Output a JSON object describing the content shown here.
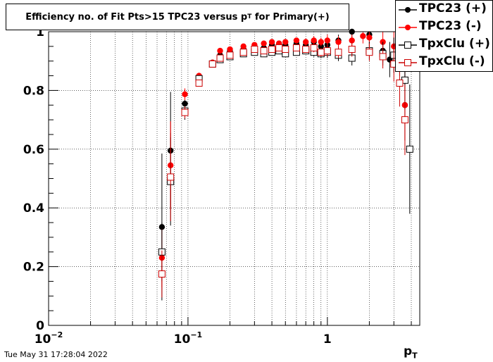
{
  "title": {
    "text_main": "Efficiency no. of Fit Pts>15 TPC23 versus p",
    "text_sub": "T",
    "text_tail": " for Primary(+)"
  },
  "xaxis": {
    "label_main": "p",
    "label_sub": "T"
  },
  "footer": {
    "timestamp": "Tue May 31 17:28:04 2022"
  },
  "legend": [
    {
      "label": "TPC23 (+)",
      "marker": "filled-circle",
      "color": "#000000"
    },
    {
      "label": "TPC23 (-)",
      "marker": "filled-circle",
      "color": "#ff0000"
    },
    {
      "label": "TpxClu (+)",
      "marker": "open-square",
      "color": "#000000"
    },
    {
      "label": "TpxClu (-)",
      "marker": "open-square",
      "color": "#cc0000"
    }
  ],
  "chart_data": {
    "type": "scatter",
    "title": "Efficiency no. of Fit Pts>15 TPC23 versus pT for Primary(+)",
    "xlabel": "pT",
    "ylabel": "",
    "xscale": "log",
    "xlim": [
      0.01,
      4.6
    ],
    "ylim": [
      0,
      1.0
    ],
    "grid": true,
    "legend_position": "top-right",
    "xticks": [
      {
        "value": 0.01,
        "base": "10",
        "exp": "−2"
      },
      {
        "value": 0.1,
        "base": "10",
        "exp": "−1"
      },
      {
        "value": 1,
        "base": "1",
        "exp": ""
      }
    ],
    "yticks": [
      {
        "value": 0,
        "label": "0"
      },
      {
        "value": 0.2,
        "label": "0.2"
      },
      {
        "value": 0.4,
        "label": "0.4"
      },
      {
        "value": 0.6,
        "label": "0.6"
      },
      {
        "value": 0.8,
        "label": "0.8"
      },
      {
        "value": 1,
        "label": "1"
      }
    ],
    "series": [
      {
        "name": "TPC23 (+)",
        "marker": "filled-circle",
        "color": "#000000",
        "points": [
          {
            "x": 0.065,
            "y": 0.335,
            "ey": 0.25
          },
          {
            "x": 0.075,
            "y": 0.595,
            "ey": 0.2
          },
          {
            "x": 0.095,
            "y": 0.755,
            "ey": 0.03,
            "ex": 0.005
          },
          {
            "x": 0.12,
            "y": 0.848,
            "ey": 0.01,
            "ex": 0.006
          },
          {
            "x": 0.15,
            "y": 0.895,
            "ey": 0.008
          },
          {
            "x": 0.17,
            "y": 0.92,
            "ey": 0.008
          },
          {
            "x": 0.2,
            "y": 0.935,
            "ey": 0.008
          },
          {
            "x": 0.25,
            "y": 0.94,
            "ey": 0.008
          },
          {
            "x": 0.3,
            "y": 0.95,
            "ey": 0.008
          },
          {
            "x": 0.35,
            "y": 0.945,
            "ey": 0.008
          },
          {
            "x": 0.4,
            "y": 0.955,
            "ey": 0.008
          },
          {
            "x": 0.45,
            "y": 0.96,
            "ey": 0.008
          },
          {
            "x": 0.5,
            "y": 0.955,
            "ey": 0.01
          },
          {
            "x": 0.6,
            "y": 0.96,
            "ey": 0.01
          },
          {
            "x": 0.7,
            "y": 0.955,
            "ey": 0.012
          },
          {
            "x": 0.8,
            "y": 0.965,
            "ey": 0.015
          },
          {
            "x": 0.9,
            "y": 0.95,
            "ey": 0.015
          },
          {
            "x": 1.0,
            "y": 0.955,
            "ey": 0.02
          },
          {
            "x": 1.2,
            "y": 0.97,
            "ey": 0.02
          },
          {
            "x": 1.5,
            "y": 1.0,
            "ey": 0.02
          },
          {
            "x": 2.0,
            "y": 0.99,
            "ey": 0.03
          },
          {
            "x": 2.5,
            "y": 0.935,
            "ey": 0.04
          },
          {
            "x": 2.8,
            "y": 0.905,
            "ey": 0.06
          },
          {
            "x": 3.3,
            "y": 0.93,
            "ey": 0.08
          },
          {
            "x": 3.6,
            "y": 0.75,
            "ey": 0.12
          }
        ]
      },
      {
        "name": "TPC23 (-)",
        "marker": "filled-circle",
        "color": "#ff0000",
        "points": [
          {
            "x": 0.065,
            "y": 0.23,
            "ey": 0.1
          },
          {
            "x": 0.075,
            "y": 0.545,
            "ey": 0.15
          },
          {
            "x": 0.095,
            "y": 0.787,
            "ey": 0.02
          },
          {
            "x": 0.12,
            "y": 0.85,
            "ey": 0.01
          },
          {
            "x": 0.15,
            "y": 0.895,
            "ey": 0.008
          },
          {
            "x": 0.17,
            "y": 0.935,
            "ey": 0.008
          },
          {
            "x": 0.2,
            "y": 0.94,
            "ey": 0.008
          },
          {
            "x": 0.25,
            "y": 0.95,
            "ey": 0.008
          },
          {
            "x": 0.3,
            "y": 0.955,
            "ey": 0.008
          },
          {
            "x": 0.35,
            "y": 0.96,
            "ey": 0.008
          },
          {
            "x": 0.4,
            "y": 0.965,
            "ey": 0.008
          },
          {
            "x": 0.45,
            "y": 0.96,
            "ey": 0.01
          },
          {
            "x": 0.5,
            "y": 0.965,
            "ey": 0.01
          },
          {
            "x": 0.6,
            "y": 0.97,
            "ey": 0.01
          },
          {
            "x": 0.7,
            "y": 0.965,
            "ey": 0.012
          },
          {
            "x": 0.8,
            "y": 0.97,
            "ey": 0.015
          },
          {
            "x": 0.9,
            "y": 0.965,
            "ey": 0.015
          },
          {
            "x": 1.0,
            "y": 0.97,
            "ey": 0.02
          },
          {
            "x": 1.2,
            "y": 0.965,
            "ey": 0.02
          },
          {
            "x": 1.5,
            "y": 0.97,
            "ey": 0.02
          },
          {
            "x": 1.8,
            "y": 0.985,
            "ey": 0.025
          },
          {
            "x": 2.0,
            "y": 0.98,
            "ey": 0.03
          },
          {
            "x": 2.5,
            "y": 0.965,
            "ey": 0.04
          },
          {
            "x": 3.0,
            "y": 0.95,
            "ey": 0.05
          },
          {
            "x": 3.6,
            "y": 0.75,
            "ey": 0.12
          }
        ]
      },
      {
        "name": "TpxClu (+)",
        "marker": "open-square",
        "color": "#000000",
        "points": [
          {
            "x": 0.065,
            "y": 0.25,
            "ey": 0.1
          },
          {
            "x": 0.075,
            "y": 0.49,
            "ey": 0.15
          },
          {
            "x": 0.095,
            "y": 0.73,
            "ey": 0.03,
            "ex": 0.005
          },
          {
            "x": 0.12,
            "y": 0.84,
            "ey": 0.01,
            "ex": 0.006
          },
          {
            "x": 0.15,
            "y": 0.89,
            "ey": 0.008
          },
          {
            "x": 0.17,
            "y": 0.905,
            "ey": 0.008
          },
          {
            "x": 0.2,
            "y": 0.915,
            "ey": 0.008
          },
          {
            "x": 0.25,
            "y": 0.925,
            "ey": 0.008
          },
          {
            "x": 0.3,
            "y": 0.93,
            "ey": 0.008
          },
          {
            "x": 0.35,
            "y": 0.925,
            "ey": 0.008
          },
          {
            "x": 0.4,
            "y": 0.93,
            "ey": 0.008
          },
          {
            "x": 0.45,
            "y": 0.935,
            "ey": 0.01
          },
          {
            "x": 0.5,
            "y": 0.925,
            "ey": 0.01
          },
          {
            "x": 0.6,
            "y": 0.93,
            "ey": 0.01
          },
          {
            "x": 0.7,
            "y": 0.935,
            "ey": 0.012
          },
          {
            "x": 0.8,
            "y": 0.93,
            "ey": 0.015
          },
          {
            "x": 0.9,
            "y": 0.925,
            "ey": 0.015
          },
          {
            "x": 1.0,
            "y": 0.93,
            "ey": 0.02
          },
          {
            "x": 1.2,
            "y": 0.92,
            "ey": 0.02
          },
          {
            "x": 1.5,
            "y": 0.91,
            "ey": 0.025
          },
          {
            "x": 2.0,
            "y": 0.935,
            "ey": 0.03
          },
          {
            "x": 2.5,
            "y": 0.925,
            "ey": 0.04
          },
          {
            "x": 3.0,
            "y": 0.92,
            "ey": 0.06
          },
          {
            "x": 3.6,
            "y": 0.835,
            "ey": 0.1
          },
          {
            "x": 3.9,
            "y": 0.6,
            "ey": 0.22
          }
        ]
      },
      {
        "name": "TpxClu (-)",
        "marker": "open-square",
        "color": "#cc0000",
        "points": [
          {
            "x": 0.065,
            "y": 0.175,
            "ey": 0.08
          },
          {
            "x": 0.075,
            "y": 0.505,
            "ey": 0.15
          },
          {
            "x": 0.095,
            "y": 0.725,
            "ey": 0.02
          },
          {
            "x": 0.12,
            "y": 0.825,
            "ey": 0.01
          },
          {
            "x": 0.15,
            "y": 0.89,
            "ey": 0.008
          },
          {
            "x": 0.17,
            "y": 0.91,
            "ey": 0.008
          },
          {
            "x": 0.2,
            "y": 0.92,
            "ey": 0.008
          },
          {
            "x": 0.25,
            "y": 0.93,
            "ey": 0.008
          },
          {
            "x": 0.3,
            "y": 0.94,
            "ey": 0.008
          },
          {
            "x": 0.35,
            "y": 0.935,
            "ey": 0.008
          },
          {
            "x": 0.4,
            "y": 0.94,
            "ey": 0.008
          },
          {
            "x": 0.45,
            "y": 0.945,
            "ey": 0.01
          },
          {
            "x": 0.5,
            "y": 0.94,
            "ey": 0.01
          },
          {
            "x": 0.6,
            "y": 0.945,
            "ey": 0.01
          },
          {
            "x": 0.7,
            "y": 0.94,
            "ey": 0.012
          },
          {
            "x": 0.8,
            "y": 0.945,
            "ey": 0.015
          },
          {
            "x": 0.9,
            "y": 0.93,
            "ey": 0.015
          },
          {
            "x": 1.0,
            "y": 0.935,
            "ey": 0.02
          },
          {
            "x": 1.2,
            "y": 0.93,
            "ey": 0.02
          },
          {
            "x": 1.5,
            "y": 0.94,
            "ey": 0.025
          },
          {
            "x": 2.0,
            "y": 0.93,
            "ey": 0.03
          },
          {
            "x": 2.5,
            "y": 0.915,
            "ey": 0.04
          },
          {
            "x": 3.0,
            "y": 0.89,
            "ey": 0.06
          },
          {
            "x": 3.3,
            "y": 0.825,
            "ey": 0.08
          },
          {
            "x": 3.6,
            "y": 0.7,
            "ey": 0.12
          }
        ]
      }
    ]
  }
}
